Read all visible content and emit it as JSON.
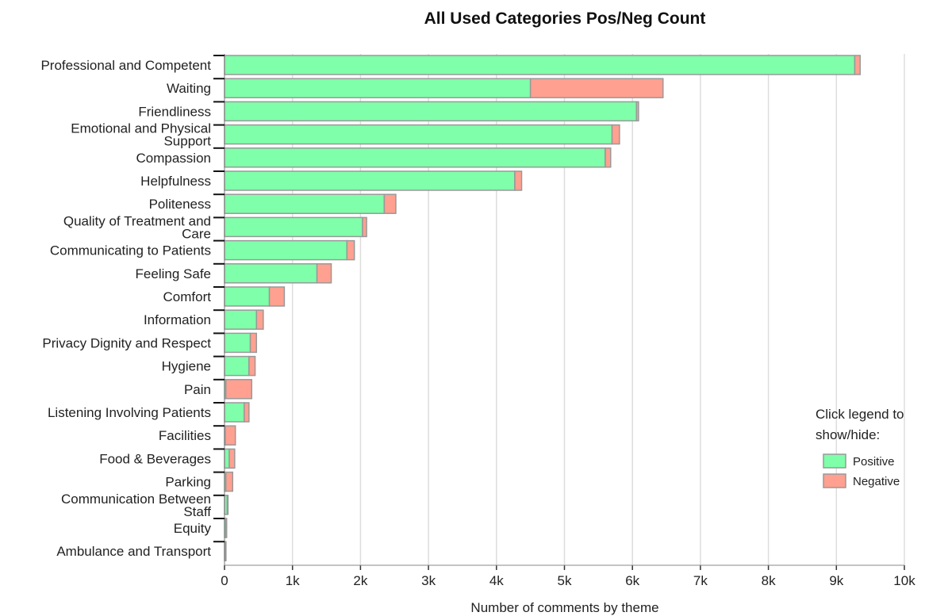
{
  "chart_data": {
    "type": "bar",
    "orientation": "horizontal",
    "stacked": true,
    "title": "All Used Categories Pos/Neg Count",
    "xlabel": "Number of comments by theme",
    "ylabel": "",
    "xlim": [
      0,
      10000
    ],
    "x_ticks": [
      {
        "value": 0,
        "label": "0"
      },
      {
        "value": 1000,
        "label": "1k"
      },
      {
        "value": 2000,
        "label": "2k"
      },
      {
        "value": 3000,
        "label": "3k"
      },
      {
        "value": 4000,
        "label": "4k"
      },
      {
        "value": 5000,
        "label": "5k"
      },
      {
        "value": 6000,
        "label": "6k"
      },
      {
        "value": 7000,
        "label": "7k"
      },
      {
        "value": 8000,
        "label": "8k"
      },
      {
        "value": 9000,
        "label": "9k"
      },
      {
        "value": 10000,
        "label": "10k"
      }
    ],
    "grid": true,
    "legend_position": "right",
    "legend_help": [
      "Click legend to",
      "show/hide:"
    ],
    "categories": [
      [
        "Professional and Competent"
      ],
      [
        "Waiting"
      ],
      [
        "Friendliness"
      ],
      [
        "Emotional and Physical",
        "Support"
      ],
      [
        "Compassion"
      ],
      [
        "Helpfulness"
      ],
      [
        "Politeness"
      ],
      [
        "Quality of Treatment and",
        "Care"
      ],
      [
        "Communicating to Patients"
      ],
      [
        "Feeling Safe"
      ],
      [
        "Comfort"
      ],
      [
        "Information"
      ],
      [
        "Privacy Dignity and Respect"
      ],
      [
        "Hygiene"
      ],
      [
        "Pain"
      ],
      [
        "Listening Involving Patients"
      ],
      [
        "Facilities"
      ],
      [
        "Food & Beverages"
      ],
      [
        "Parking"
      ],
      [
        "Communication Between",
        "Staff"
      ],
      [
        "Equity"
      ],
      [
        "Ambulance and Transport"
      ]
    ],
    "series": [
      {
        "name": "Positive",
        "color": "#80ffaa",
        "values": [
          9270,
          4500,
          6060,
          5700,
          5600,
          4270,
          2350,
          2030,
          1800,
          1360,
          660,
          470,
          380,
          360,
          20,
          290,
          10,
          70,
          20,
          40,
          20,
          10
        ]
      },
      {
        "name": "Negative",
        "color": "#ffa090",
        "values": [
          80,
          1950,
          30,
          110,
          80,
          100,
          170,
          60,
          110,
          210,
          220,
          100,
          90,
          90,
          380,
          70,
          150,
          80,
          100,
          10,
          10,
          10
        ]
      }
    ]
  }
}
